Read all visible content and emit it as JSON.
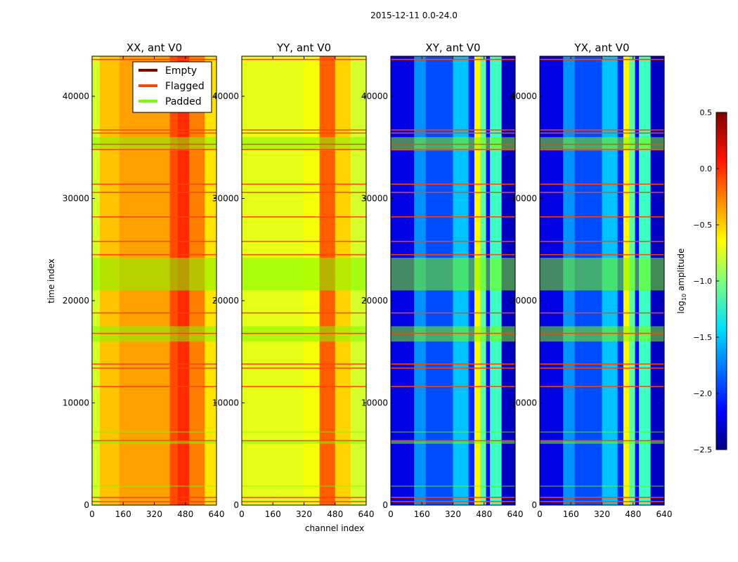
{
  "chart_data": {
    "type": "heatmap",
    "suptitle": "2015-12-11 0.0-24.0",
    "xlabel": "channel index",
    "ylabel": "time index",
    "xlim": [
      0,
      640
    ],
    "ylim": [
      0,
      43920
    ],
    "xticks": [
      "0",
      "160",
      "320",
      "480",
      "640"
    ],
    "yticks": [
      "0",
      "10000",
      "20000",
      "30000",
      "40000"
    ],
    "colorbar": {
      "label": "log10 amplitude",
      "label_main": "log",
      "label_sub": "10",
      "label_rest": " amplitude",
      "range": [
        -2.5,
        0.5
      ],
      "ticks": [
        "0.5",
        "0.0",
        "−0.5",
        "−1.0",
        "−1.5",
        "−2.0",
        "−2.5"
      ],
      "colormap": "jet"
    },
    "legend": {
      "placement": "upper-right of first panel",
      "entries": [
        {
          "label": "Empty",
          "color": "#800000"
        },
        {
          "label": "Flagged",
          "color": "#ff4500"
        },
        {
          "label": "Padded",
          "color": "#7cfc00"
        }
      ]
    },
    "flagged_times": [
      43600,
      36700,
      36400,
      35300,
      34800,
      31400,
      30600,
      28200,
      25800,
      24500,
      18800,
      16800,
      13800,
      13400,
      11600,
      6300,
      750,
      350
    ],
    "padded_time_ranges": [
      [
        34700,
        36000
      ],
      [
        21000,
        24200
      ],
      [
        16000,
        17500
      ],
      [
        6000,
        6300
      ],
      [
        1800,
        1900
      ],
      [
        7100,
        7200
      ]
    ],
    "panels": [
      {
        "title": "XX, ant V0",
        "profile": [
          [
            0,
            40,
            -0.75
          ],
          [
            40,
            140,
            -0.45
          ],
          [
            140,
            400,
            -0.35
          ],
          [
            400,
            440,
            -0.1
          ],
          [
            440,
            500,
            0.0
          ],
          [
            500,
            580,
            -0.25
          ],
          [
            580,
            640,
            -0.55
          ]
        ]
      },
      {
        "title": "YY, ant V0",
        "profile": [
          [
            0,
            320,
            -0.7
          ],
          [
            320,
            400,
            -0.65
          ],
          [
            400,
            480,
            -0.15
          ],
          [
            480,
            560,
            -0.5
          ],
          [
            560,
            640,
            -0.75
          ]
        ]
      },
      {
        "title": "XY, ant V0",
        "profile": [
          [
            0,
            120,
            -2.2
          ],
          [
            120,
            180,
            -1.7
          ],
          [
            180,
            320,
            -1.9
          ],
          [
            320,
            400,
            -1.55
          ],
          [
            400,
            430,
            -2.0
          ],
          [
            430,
            460,
            -0.6
          ],
          [
            460,
            490,
            -1.1
          ],
          [
            490,
            510,
            -2.1
          ],
          [
            510,
            570,
            -1.2
          ],
          [
            570,
            640,
            -2.3
          ]
        ]
      },
      {
        "title": "YX, ant V0",
        "profile": [
          [
            0,
            120,
            -2.2
          ],
          [
            120,
            180,
            -1.7
          ],
          [
            180,
            320,
            -1.9
          ],
          [
            320,
            400,
            -1.55
          ],
          [
            400,
            430,
            -2.0
          ],
          [
            430,
            460,
            -0.6
          ],
          [
            460,
            490,
            -1.1
          ],
          [
            490,
            510,
            -2.1
          ],
          [
            510,
            570,
            -1.2
          ],
          [
            570,
            640,
            -2.3
          ]
        ]
      }
    ]
  }
}
